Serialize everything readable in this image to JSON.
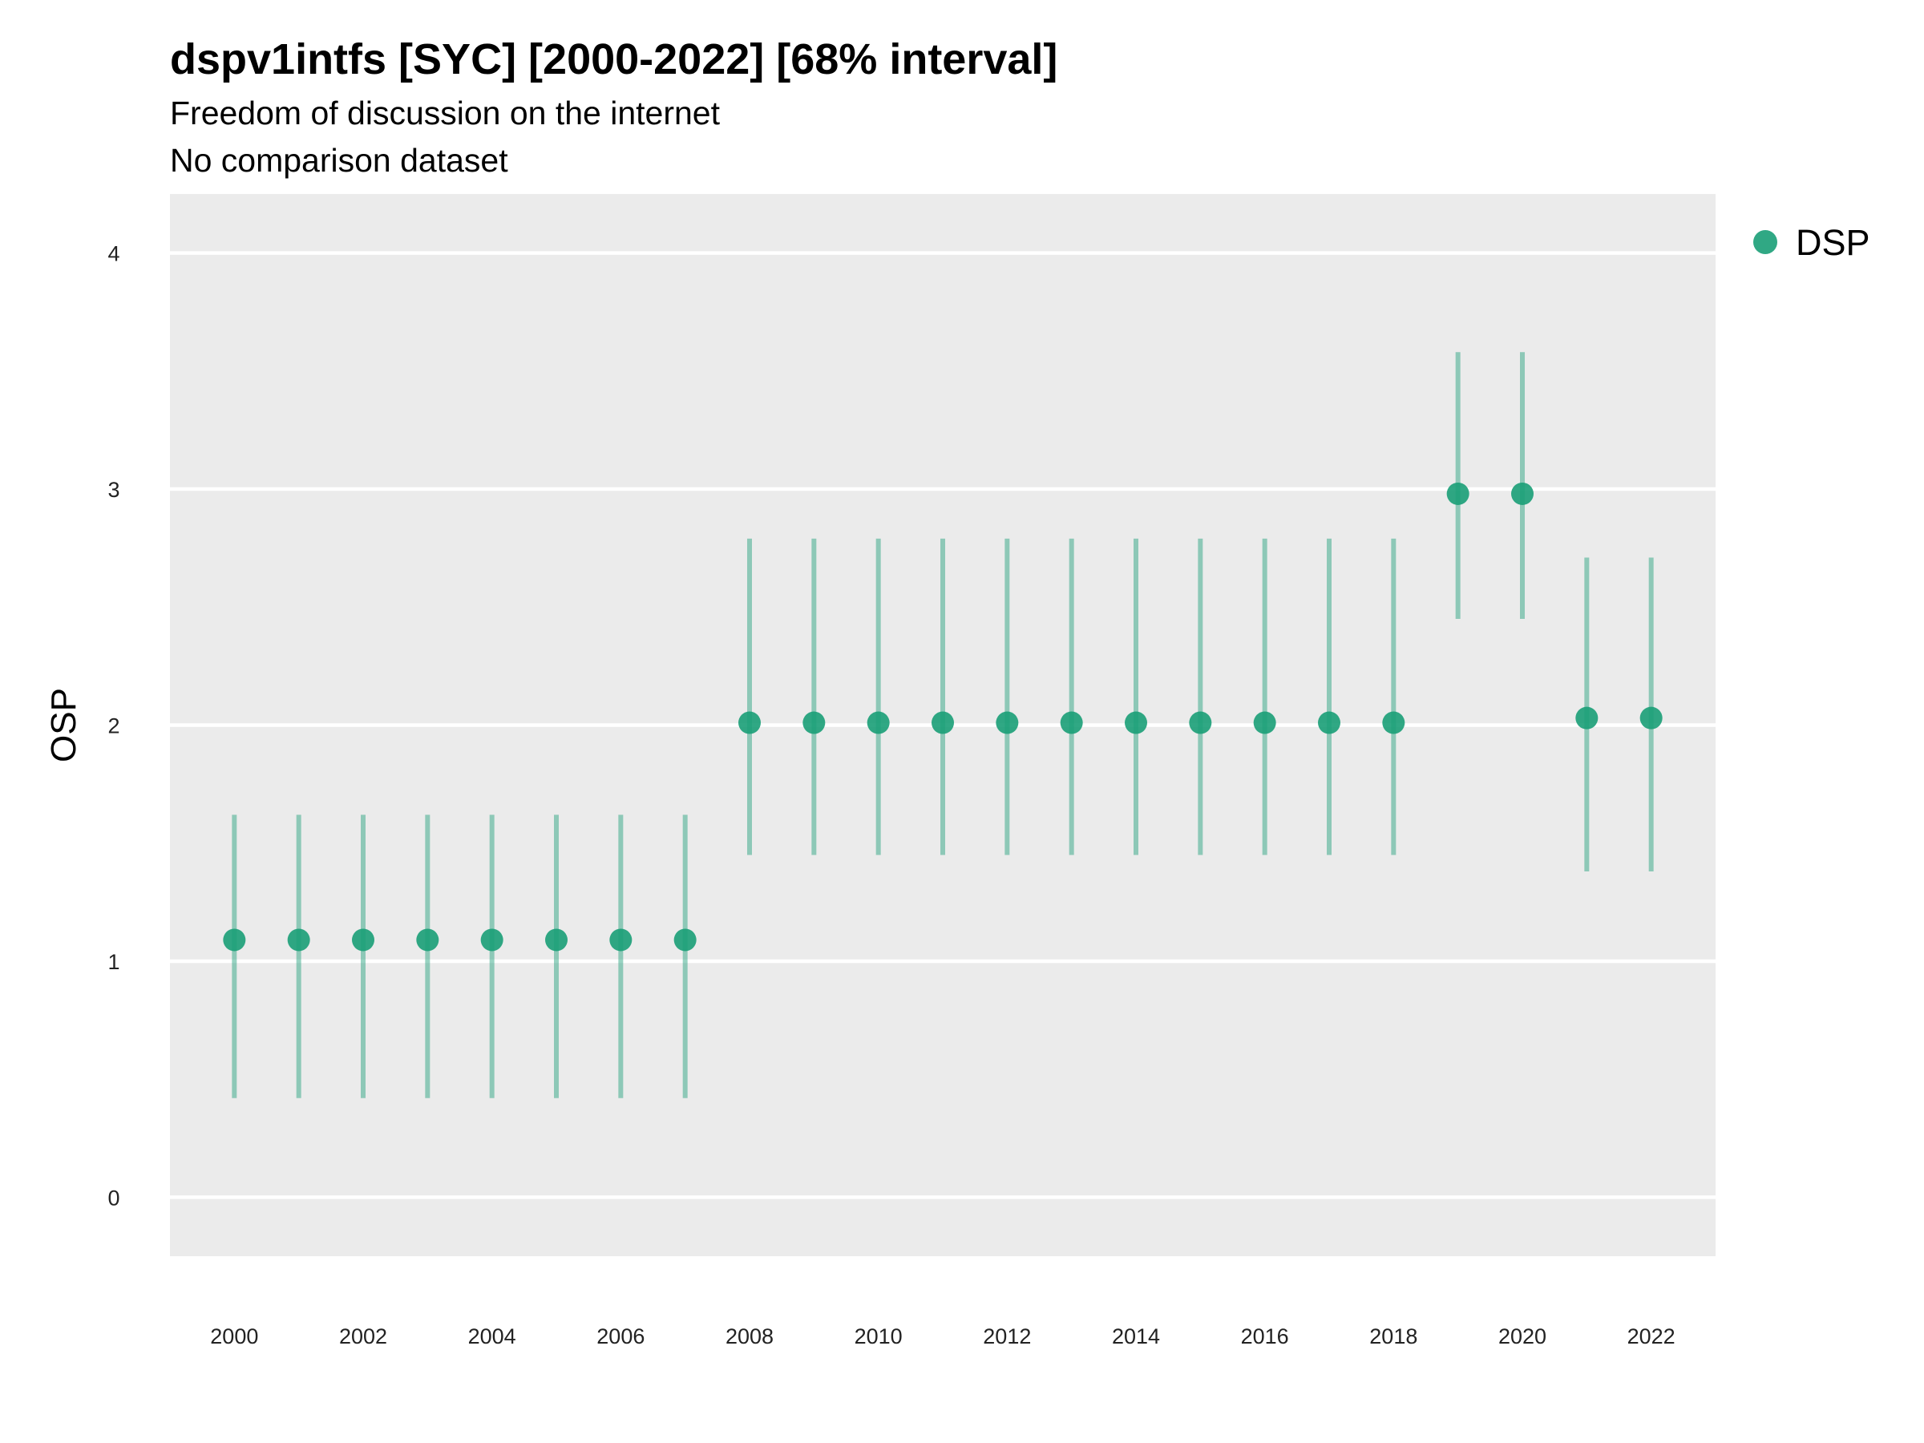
{
  "chart_data": {
    "type": "scatter",
    "title": "dspv1intfs [SYC] [2000-2022] [68% interval]",
    "subtitle": "Freedom of discussion on the internet",
    "caption": "No comparison dataset",
    "xlabel": "",
    "ylabel": "OSP",
    "ylim": [
      -0.25,
      4.25
    ],
    "xlim": [
      1999.0,
      2023.0
    ],
    "y_ticks": [
      0,
      1,
      2,
      3,
      4
    ],
    "x_ticks": [
      2000,
      2002,
      2004,
      2006,
      2008,
      2010,
      2012,
      2014,
      2016,
      2018,
      2020,
      2022
    ],
    "grid": true,
    "legend_position": "top-right",
    "series": [
      {
        "name": "DSP",
        "color": "#1a9e77",
        "x": [
          2000,
          2001,
          2002,
          2003,
          2004,
          2005,
          2006,
          2007,
          2008,
          2009,
          2010,
          2011,
          2012,
          2013,
          2014,
          2015,
          2016,
          2017,
          2018,
          2019,
          2020,
          2021,
          2022
        ],
        "y": [
          1.09,
          1.09,
          1.09,
          1.09,
          1.09,
          1.09,
          1.09,
          1.09,
          2.01,
          2.01,
          2.01,
          2.01,
          2.01,
          2.01,
          2.01,
          2.01,
          2.01,
          2.01,
          2.01,
          2.98,
          2.98,
          2.03,
          2.03
        ],
        "lower": [
          0.42,
          0.42,
          0.42,
          0.42,
          0.42,
          0.42,
          0.42,
          0.42,
          1.45,
          1.45,
          1.45,
          1.45,
          1.45,
          1.45,
          1.45,
          1.45,
          1.45,
          1.45,
          1.45,
          2.45,
          2.45,
          1.38,
          1.38
        ],
        "upper": [
          1.62,
          1.62,
          1.62,
          1.62,
          1.62,
          1.62,
          1.62,
          1.62,
          2.79,
          2.79,
          2.79,
          2.79,
          2.79,
          2.79,
          2.79,
          2.79,
          2.79,
          2.79,
          2.79,
          3.58,
          3.58,
          2.71,
          2.71
        ]
      }
    ]
  }
}
